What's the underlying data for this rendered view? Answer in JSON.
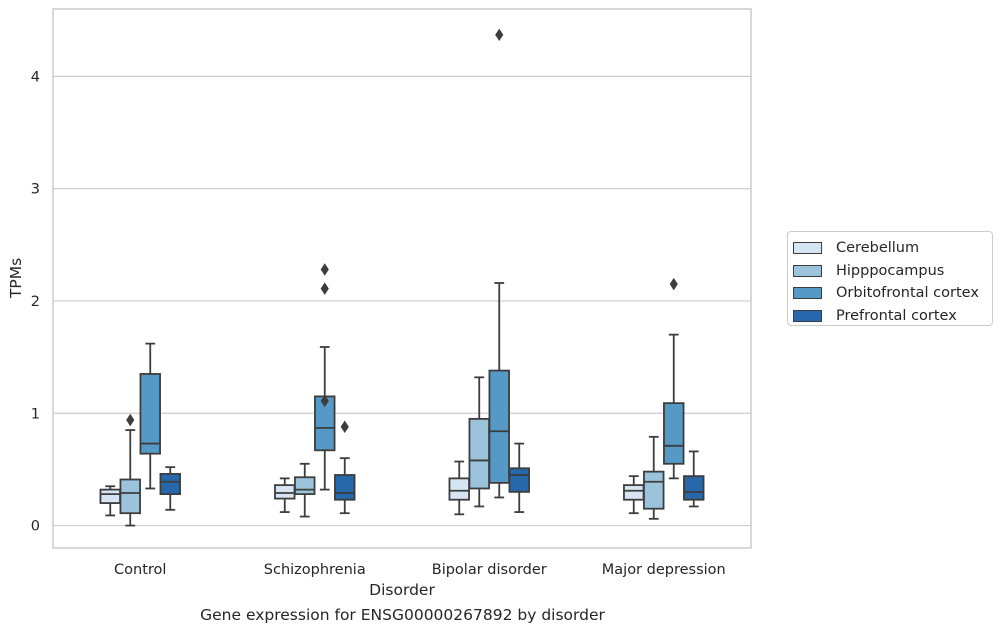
{
  "chart_data": {
    "type": "boxplot",
    "title": "",
    "caption": "Gene expression for ENSG00000267892 by disorder",
    "xlabel": "Disorder",
    "ylabel": "TPMs",
    "ylim": [
      -0.2,
      4.6
    ],
    "yticks": [
      0,
      1,
      2,
      3,
      4
    ],
    "grid": "horizontal",
    "legend_position": "right",
    "categories": [
      "Control",
      "Schizophrenia",
      "Bipolar disorder",
      "Major depression"
    ],
    "series": [
      {
        "name": "Cerebellum",
        "color": "#d6e5f4",
        "boxes": [
          {
            "whislo": 0.09,
            "q1": 0.2,
            "med": 0.28,
            "q3": 0.32,
            "whishi": 0.35,
            "fliers": []
          },
          {
            "whislo": 0.12,
            "q1": 0.24,
            "med": 0.29,
            "q3": 0.36,
            "whishi": 0.42,
            "fliers": []
          },
          {
            "whislo": 0.1,
            "q1": 0.23,
            "med": 0.31,
            "q3": 0.42,
            "whishi": 0.57,
            "fliers": []
          },
          {
            "whislo": 0.11,
            "q1": 0.23,
            "med": 0.31,
            "q3": 0.36,
            "whishi": 0.44,
            "fliers": []
          }
        ]
      },
      {
        "name": "Hipppocampus",
        "color": "#9cc3dc",
        "boxes": [
          {
            "whislo": 0.0,
            "q1": 0.11,
            "med": 0.29,
            "q3": 0.41,
            "whishi": 0.85,
            "fliers": [
              0.94
            ]
          },
          {
            "whislo": 0.08,
            "q1": 0.28,
            "med": 0.32,
            "q3": 0.43,
            "whishi": 0.55,
            "fliers": []
          },
          {
            "whislo": 0.17,
            "q1": 0.33,
            "med": 0.58,
            "q3": 0.95,
            "whishi": 1.32,
            "fliers": []
          },
          {
            "whislo": 0.06,
            "q1": 0.15,
            "med": 0.39,
            "q3": 0.48,
            "whishi": 0.79,
            "fliers": []
          }
        ]
      },
      {
        "name": "Orbitofrontal cortex",
        "color": "#5599c7",
        "boxes": [
          {
            "whislo": 0.33,
            "q1": 0.64,
            "med": 0.73,
            "q3": 1.35,
            "whishi": 1.62,
            "fliers": []
          },
          {
            "whislo": 0.32,
            "q1": 0.67,
            "med": 0.87,
            "q3": 1.15,
            "whishi": 1.59,
            "fliers": [
              1.11,
              2.11,
              2.28
            ]
          },
          {
            "whislo": 0.25,
            "q1": 0.38,
            "med": 0.84,
            "q3": 1.38,
            "whishi": 2.16,
            "fliers": [
              4.37
            ]
          },
          {
            "whislo": 0.42,
            "q1": 0.55,
            "med": 0.71,
            "q3": 1.09,
            "whishi": 1.7,
            "fliers": [
              2.15
            ]
          }
        ]
      },
      {
        "name": "Prefrontal cortex",
        "color": "#2767ab",
        "boxes": [
          {
            "whislo": 0.14,
            "q1": 0.28,
            "med": 0.39,
            "q3": 0.46,
            "whishi": 0.52,
            "fliers": []
          },
          {
            "whislo": 0.11,
            "q1": 0.23,
            "med": 0.29,
            "q3": 0.45,
            "whishi": 0.6,
            "fliers": [
              0.88
            ]
          },
          {
            "whislo": 0.12,
            "q1": 0.3,
            "med": 0.45,
            "q3": 0.51,
            "whishi": 0.73,
            "fliers": []
          },
          {
            "whislo": 0.17,
            "q1": 0.23,
            "med": 0.3,
            "q3": 0.44,
            "whishi": 0.66,
            "fliers": []
          }
        ]
      }
    ]
  }
}
